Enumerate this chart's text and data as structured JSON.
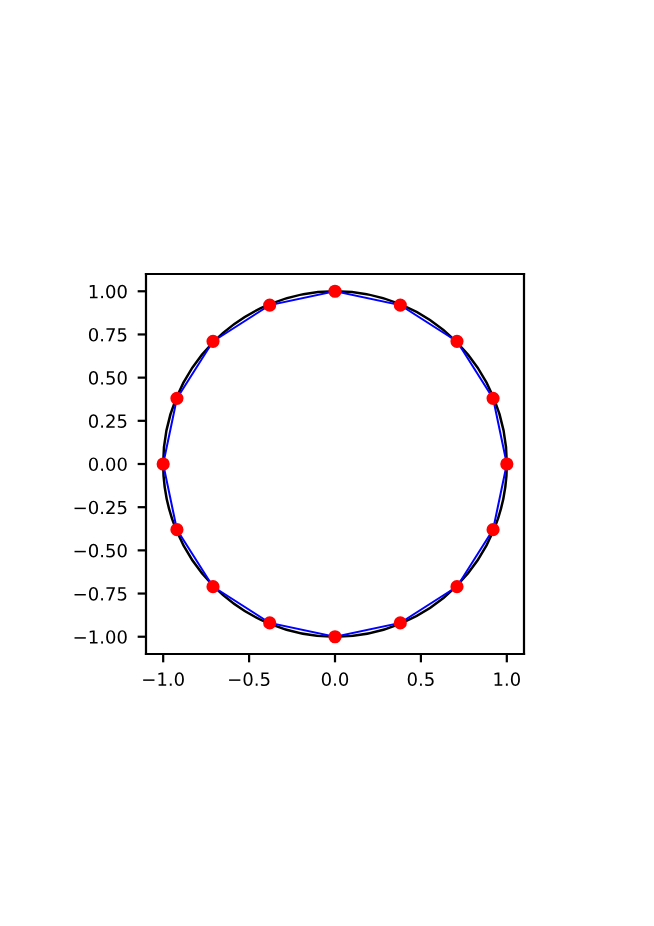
{
  "chart_data": {
    "type": "scatter",
    "xlim": [
      -1.1,
      1.1
    ],
    "ylim": [
      -1.1,
      1.1
    ],
    "xticks": [
      {
        "value": -1.0,
        "label": "−1.0"
      },
      {
        "value": -0.5,
        "label": "−0.5"
      },
      {
        "value": 0.0,
        "label": "0.0"
      },
      {
        "value": 0.5,
        "label": "0.5"
      },
      {
        "value": 1.0,
        "label": "1.0"
      }
    ],
    "yticks": [
      {
        "value": -1.0,
        "label": "−1.00"
      },
      {
        "value": -0.75,
        "label": "−0.75"
      },
      {
        "value": -0.5,
        "label": "−0.50"
      },
      {
        "value": -0.25,
        "label": "−0.25"
      },
      {
        "value": 0.0,
        "label": "0.00"
      },
      {
        "value": 0.25,
        "label": "0.25"
      },
      {
        "value": 0.5,
        "label": "0.50"
      },
      {
        "value": 0.75,
        "label": "0.75"
      },
      {
        "value": 1.0,
        "label": "1.00"
      }
    ],
    "grid": false,
    "series": [
      {
        "color": "#ff0000",
        "marker": "circle",
        "x": [
          1,
          0.92,
          0.71,
          0.38,
          0,
          -0.38,
          -0.71,
          -0.92,
          -1,
          -0.92,
          -0.71,
          -0.38,
          0,
          0.38,
          0.71,
          0.92
        ],
        "values": [
          0,
          0.38,
          0.71,
          0.92,
          1,
          0.92,
          0.71,
          0.38,
          0,
          -0.38,
          -0.71,
          -0.92,
          -1,
          -0.92,
          -0.71,
          -0.38
        ]
      }
    ]
  }
}
